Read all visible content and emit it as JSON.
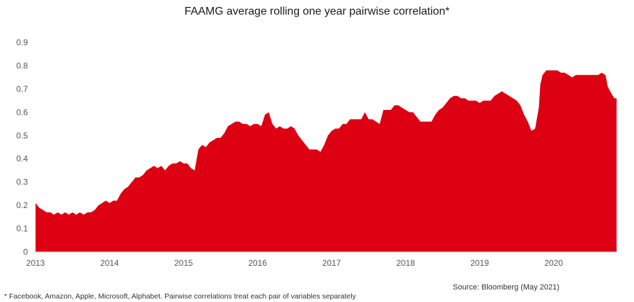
{
  "chart_data": {
    "type": "area",
    "title": "FAAMG average rolling one year pairwise correlation*",
    "xlabel": "",
    "ylabel": "",
    "xlim": [
      2013.0,
      2020.85
    ],
    "ylim": [
      0,
      0.9
    ],
    "yticks": [
      "0",
      "0.1",
      "0.2",
      "0.3",
      "0.4",
      "0.5",
      "0.6",
      "0.7",
      "0.8",
      "0.9"
    ],
    "xticks": [
      "2013",
      "2014",
      "2015",
      "2016",
      "2017",
      "2018",
      "2019",
      "2020"
    ],
    "color": "#dc0012",
    "series": [
      {
        "name": "Average rolling one year pairwise correlation",
        "points": [
          [
            2013.0,
            0.21
          ],
          [
            2013.05,
            0.19
          ],
          [
            2013.1,
            0.18
          ],
          [
            2013.15,
            0.17
          ],
          [
            2013.2,
            0.17
          ],
          [
            2013.25,
            0.16
          ],
          [
            2013.3,
            0.17
          ],
          [
            2013.35,
            0.16
          ],
          [
            2013.4,
            0.17
          ],
          [
            2013.45,
            0.16
          ],
          [
            2013.5,
            0.17
          ],
          [
            2013.55,
            0.16
          ],
          [
            2013.6,
            0.17
          ],
          [
            2013.65,
            0.16
          ],
          [
            2013.7,
            0.17
          ],
          [
            2013.75,
            0.17
          ],
          [
            2013.8,
            0.18
          ],
          [
            2013.85,
            0.2
          ],
          [
            2013.9,
            0.21
          ],
          [
            2013.95,
            0.22
          ],
          [
            2014.0,
            0.21
          ],
          [
            2014.05,
            0.22
          ],
          [
            2014.1,
            0.22
          ],
          [
            2014.15,
            0.25
          ],
          [
            2014.2,
            0.27
          ],
          [
            2014.25,
            0.28
          ],
          [
            2014.3,
            0.3
          ],
          [
            2014.35,
            0.32
          ],
          [
            2014.4,
            0.32
          ],
          [
            2014.45,
            0.33
          ],
          [
            2014.5,
            0.35
          ],
          [
            2014.55,
            0.36
          ],
          [
            2014.6,
            0.37
          ],
          [
            2014.65,
            0.36
          ],
          [
            2014.7,
            0.37
          ],
          [
            2014.75,
            0.35
          ],
          [
            2014.8,
            0.37
          ],
          [
            2014.85,
            0.38
          ],
          [
            2014.9,
            0.38
          ],
          [
            2014.95,
            0.39
          ],
          [
            2015.0,
            0.38
          ],
          [
            2015.05,
            0.38
          ],
          [
            2015.1,
            0.36
          ],
          [
            2015.15,
            0.35
          ],
          [
            2015.2,
            0.44
          ],
          [
            2015.25,
            0.46
          ],
          [
            2015.3,
            0.45
          ],
          [
            2015.35,
            0.47
          ],
          [
            2015.4,
            0.48
          ],
          [
            2015.45,
            0.49
          ],
          [
            2015.5,
            0.49
          ],
          [
            2015.55,
            0.51
          ],
          [
            2015.6,
            0.54
          ],
          [
            2015.65,
            0.55
          ],
          [
            2015.7,
            0.56
          ],
          [
            2015.75,
            0.56
          ],
          [
            2015.8,
            0.55
          ],
          [
            2015.85,
            0.55
          ],
          [
            2015.9,
            0.54
          ],
          [
            2015.95,
            0.55
          ],
          [
            2016.0,
            0.55
          ],
          [
            2016.05,
            0.54
          ],
          [
            2016.1,
            0.59
          ],
          [
            2016.15,
            0.6
          ],
          [
            2016.2,
            0.55
          ],
          [
            2016.25,
            0.53
          ],
          [
            2016.3,
            0.54
          ],
          [
            2016.35,
            0.53
          ],
          [
            2016.4,
            0.53
          ],
          [
            2016.45,
            0.54
          ],
          [
            2016.5,
            0.53
          ],
          [
            2016.55,
            0.5
          ],
          [
            2016.6,
            0.48
          ],
          [
            2016.65,
            0.46
          ],
          [
            2016.7,
            0.44
          ],
          [
            2016.75,
            0.44
          ],
          [
            2016.8,
            0.44
          ],
          [
            2016.85,
            0.43
          ],
          [
            2016.9,
            0.46
          ],
          [
            2016.95,
            0.5
          ],
          [
            2017.0,
            0.52
          ],
          [
            2017.05,
            0.53
          ],
          [
            2017.1,
            0.53
          ],
          [
            2017.15,
            0.55
          ],
          [
            2017.2,
            0.55
          ],
          [
            2017.25,
            0.57
          ],
          [
            2017.3,
            0.57
          ],
          [
            2017.35,
            0.57
          ],
          [
            2017.4,
            0.57
          ],
          [
            2017.45,
            0.6
          ],
          [
            2017.5,
            0.57
          ],
          [
            2017.55,
            0.57
          ],
          [
            2017.6,
            0.56
          ],
          [
            2017.65,
            0.55
          ],
          [
            2017.7,
            0.61
          ],
          [
            2017.75,
            0.61
          ],
          [
            2017.8,
            0.61
          ],
          [
            2017.85,
            0.63
          ],
          [
            2017.9,
            0.63
          ],
          [
            2017.95,
            0.62
          ],
          [
            2018.0,
            0.61
          ],
          [
            2018.05,
            0.6
          ],
          [
            2018.1,
            0.6
          ],
          [
            2018.15,
            0.58
          ],
          [
            2018.2,
            0.56
          ],
          [
            2018.25,
            0.56
          ],
          [
            2018.3,
            0.56
          ],
          [
            2018.35,
            0.56
          ],
          [
            2018.4,
            0.59
          ],
          [
            2018.45,
            0.61
          ],
          [
            2018.5,
            0.62
          ],
          [
            2018.55,
            0.64
          ],
          [
            2018.6,
            0.66
          ],
          [
            2018.65,
            0.67
          ],
          [
            2018.7,
            0.67
          ],
          [
            2018.75,
            0.66
          ],
          [
            2018.8,
            0.66
          ],
          [
            2018.85,
            0.65
          ],
          [
            2018.9,
            0.65
          ],
          [
            2018.95,
            0.65
          ],
          [
            2019.0,
            0.64
          ],
          [
            2019.05,
            0.65
          ],
          [
            2019.1,
            0.65
          ],
          [
            2019.15,
            0.65
          ],
          [
            2019.2,
            0.67
          ],
          [
            2019.25,
            0.68
          ],
          [
            2019.3,
            0.69
          ],
          [
            2019.35,
            0.68
          ],
          [
            2019.4,
            0.67
          ],
          [
            2019.45,
            0.66
          ],
          [
            2019.5,
            0.65
          ],
          [
            2019.55,
            0.63
          ],
          [
            2019.6,
            0.59
          ],
          [
            2019.65,
            0.56
          ],
          [
            2019.7,
            0.52
          ],
          [
            2019.75,
            0.53
          ],
          [
            2019.8,
            0.62
          ],
          [
            2019.82,
            0.72
          ],
          [
            2019.85,
            0.76
          ],
          [
            2019.9,
            0.78
          ],
          [
            2019.95,
            0.78
          ],
          [
            2020.0,
            0.78
          ],
          [
            2020.05,
            0.78
          ],
          [
            2020.1,
            0.77
          ],
          [
            2020.15,
            0.77
          ],
          [
            2020.2,
            0.76
          ],
          [
            2020.25,
            0.75
          ],
          [
            2020.3,
            0.76
          ],
          [
            2020.35,
            0.76
          ],
          [
            2020.4,
            0.76
          ],
          [
            2020.45,
            0.76
          ],
          [
            2020.5,
            0.76
          ],
          [
            2020.55,
            0.76
          ],
          [
            2020.6,
            0.76
          ],
          [
            2020.65,
            0.77
          ],
          [
            2020.7,
            0.76
          ],
          [
            2020.73,
            0.71
          ],
          [
            2020.78,
            0.68
          ],
          [
            2020.82,
            0.66
          ],
          [
            2020.85,
            0.66
          ]
        ]
      }
    ]
  },
  "source": "Source: Bloomberg  (May 2021)",
  "footnote": "* Facebook, Amazon, Apple, Microsoft, Alphabet. Pairwise correlations treat each pair of variables separately"
}
